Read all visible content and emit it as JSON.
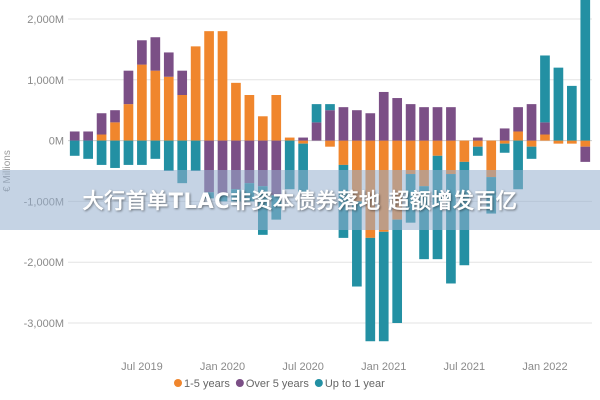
{
  "banner": {
    "headline": "大行首单TLAC非资本债券落地 超额增发百亿"
  },
  "colors": {
    "orange": "#f0862d",
    "purple": "#7b4f86",
    "teal": "#2390a3",
    "grid": "#e3e3e3",
    "zero_line": "#cfcfcf"
  },
  "chart_data": {
    "type": "bar",
    "stacked": true,
    "xlabel": "",
    "ylabel": "€ Millions",
    "ylim": [
      -3500,
      2100
    ],
    "yticks": [
      2000,
      1000,
      0,
      -1000,
      -2000,
      -3000
    ],
    "ytick_labels": [
      "2,000M",
      "1,000M",
      "0M",
      "-1,000M",
      "-2,000M",
      "-3,000M"
    ],
    "xtick_labels": [
      {
        "label": "Jul 2019",
        "index": 5
      },
      {
        "label": "Jan 2020",
        "index": 11
      },
      {
        "label": "Jul 2020",
        "index": 17
      },
      {
        "label": "Jan 2021",
        "index": 23
      },
      {
        "label": "Jul 2021",
        "index": 29
      },
      {
        "label": "Jan 2022",
        "index": 35
      }
    ],
    "legend_position": "bottom-center",
    "categories": [
      "2019-02",
      "2019-03",
      "2019-04",
      "2019-05",
      "2019-06",
      "2019-07",
      "2019-08",
      "2019-09",
      "2019-10",
      "2019-11",
      "2019-12",
      "2020-01",
      "2020-02",
      "2020-03",
      "2020-04",
      "2020-05",
      "2020-06",
      "2020-07",
      "2020-08",
      "2020-09",
      "2020-10",
      "2020-11",
      "2020-12",
      "2021-01",
      "2021-02",
      "2021-03",
      "2021-04",
      "2021-05",
      "2021-06",
      "2021-07",
      "2021-08",
      "2021-09",
      "2021-10",
      "2021-11",
      "2021-12",
      "2022-01",
      "2022-02",
      "2022-03",
      "2022-04"
    ],
    "series": [
      {
        "name": "1-5 years",
        "color": "#f0862d",
        "values": [
          0,
          0,
          100,
          300,
          600,
          1250,
          1150,
          1050,
          750,
          1550,
          1800,
          1800,
          950,
          750,
          400,
          750,
          50,
          -50,
          0,
          -100,
          -400,
          -1000,
          -1600,
          -1500,
          -1300,
          -550,
          -750,
          -250,
          -550,
          -350,
          -100,
          -600,
          -50,
          150,
          -100,
          100,
          -50,
          -50,
          -100
        ],
        "show_value_labels": false
      },
      {
        "name": "Over 5 years",
        "color": "#7b4f86",
        "values": [
          150,
          150,
          350,
          200,
          550,
          400,
          550,
          400,
          400,
          0,
          -850,
          -900,
          -800,
          -700,
          -750,
          -900,
          0,
          50,
          300,
          500,
          550,
          500,
          450,
          800,
          700,
          600,
          550,
          550,
          550,
          0,
          50,
          0,
          200,
          400,
          600,
          200,
          0,
          0,
          -250
        ],
        "show_value_labels": false
      },
      {
        "name": "Up to 1 year",
        "color": "#2390a3",
        "values": [
          -250,
          -300,
          -400,
          -450,
          -400,
          -400,
          -300,
          -500,
          -700,
          -500,
          -100,
          -100,
          -200,
          -300,
          -800,
          -400,
          -800,
          -800,
          300,
          100,
          -1200,
          -1400,
          -1700,
          -1800,
          -1700,
          -800,
          -1200,
          -1700,
          -1800,
          -1700,
          -150,
          -600,
          -150,
          -800,
          -200,
          1100,
          1200,
          900,
          2400
        ],
        "show_value_labels": false
      }
    ]
  },
  "legend": {
    "items": [
      {
        "label": "1-5 years",
        "color": "#f0862d"
      },
      {
        "label": "Over 5 years",
        "color": "#7b4f86"
      },
      {
        "label": "Up to 1 year",
        "color": "#2390a3"
      }
    ]
  }
}
